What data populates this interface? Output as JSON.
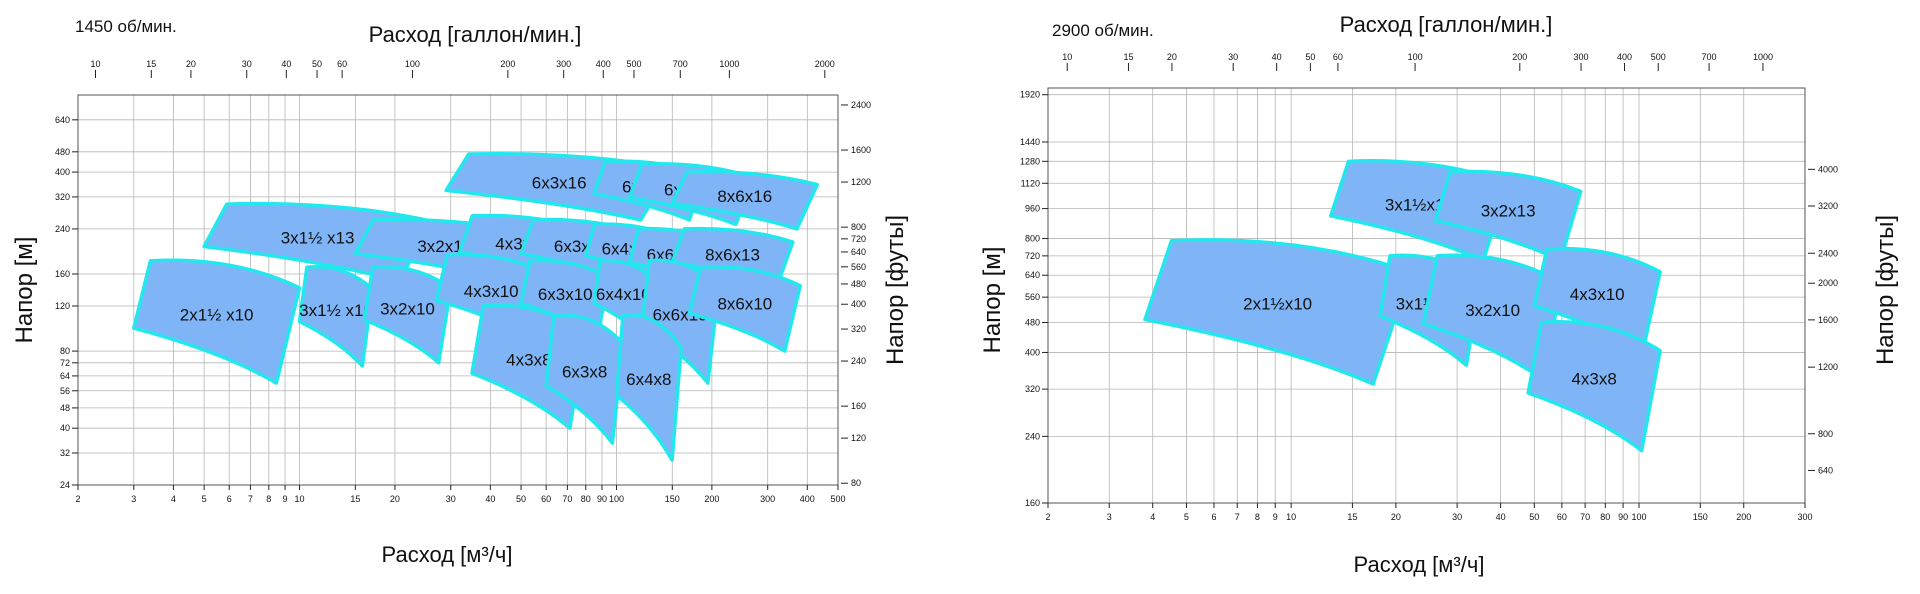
{
  "chart_data": [
    {
      "type": "area",
      "title": "1450 об/мин.",
      "xlabel": "Расход [м³/ч]",
      "x2label": "Расход [галлон/мин.]",
      "ylabel": "Напор [м]",
      "y2label": "Напор [футы]",
      "x_scale": "log",
      "y_scale": "log",
      "xlim": [
        2,
        500
      ],
      "ylim": [
        24,
        800
      ],
      "grid": true,
      "x_ticks": [
        "2",
        "3",
        "4",
        "5",
        "6",
        "7",
        "8",
        "9",
        "10",
        "15",
        "20",
        "30",
        "40",
        "50",
        "60",
        "70",
        "80",
        "90",
        "100",
        "150",
        "200",
        "300",
        "400",
        "500"
      ],
      "x2_ticks": [
        "10",
        "15",
        "20",
        "30",
        "40",
        "50",
        "60",
        "100",
        "200",
        "300",
        "400",
        "500",
        "700",
        "1000",
        "2000"
      ],
      "y_ticks": [
        "24",
        "32",
        "40",
        "48",
        "56",
        "64",
        "72",
        "80",
        "120",
        "160",
        "240",
        "320",
        "400",
        "480",
        "640"
      ],
      "y2_ticks": [
        "80",
        "120",
        "160",
        "240",
        "320",
        "400",
        "480",
        "560",
        "640",
        "720",
        "800",
        "1200",
        "1600",
        "2400"
      ],
      "regions": [
        {
          "label": "6x3x16",
          "x": [
            29,
            150
          ],
          "y": [
            260,
            470
          ]
        },
        {
          "label": "6x4x16",
          "x": [
            85,
            190
          ],
          "y": [
            260,
            440
          ]
        },
        {
          "label": "6x6x16",
          "x": [
            110,
            270
          ],
          "y": [
            250,
            430
          ]
        },
        {
          "label": "8x6x16",
          "x": [
            150,
            430
          ],
          "y": [
            240,
            400
          ]
        },
        {
          "label": "3x1½ x13",
          "x": [
            5,
            26
          ],
          "y": [
            150,
            300
          ]
        },
        {
          "label": "3x2x13",
          "x": [
            15,
            55
          ],
          "y": [
            150,
            260
          ]
        },
        {
          "label": "4x3x13",
          "x": [
            32,
            80
          ],
          "y": [
            150,
            270
          ]
        },
        {
          "label": "6x3x13",
          "x": [
            50,
            120
          ],
          "y": [
            150,
            260
          ]
        },
        {
          "label": "6x4x13",
          "x": [
            80,
            150
          ],
          "y": [
            150,
            250
          ]
        },
        {
          "label": "6x6x13",
          "x": [
            110,
            210
          ],
          "y": [
            140,
            240
          ]
        },
        {
          "label": "8x6x13",
          "x": [
            150,
            360
          ],
          "y": [
            140,
            240
          ]
        },
        {
          "label": "2x1½ x10",
          "x": [
            3,
            10
          ],
          "y": [
            60,
            180
          ]
        },
        {
          "label": "3x1½ x10",
          "x": [
            10,
            17
          ],
          "y": [
            70,
            170
          ]
        },
        {
          "label": "3x2x10",
          "x": [
            16,
            30
          ],
          "y": [
            72,
            170
          ]
        },
        {
          "label": "4x3x10",
          "x": [
            27,
            60
          ],
          "y": [
            90,
            190
          ]
        },
        {
          "label": "6x3x10",
          "x": [
            50,
            95
          ],
          "y": [
            90,
            180
          ]
        },
        {
          "label": "6x4x10",
          "x": [
            85,
            130
          ],
          "y": [
            90,
            180
          ]
        },
        {
          "label": "6x6x10",
          "x": [
            120,
            210
          ],
          "y": [
            60,
            180
          ]
        },
        {
          "label": "8x6x10",
          "x": [
            170,
            380
          ],
          "y": [
            80,
            170
          ]
        },
        {
          "label": "4x3x8",
          "x": [
            35,
            80
          ],
          "y": [
            40,
            120
          ]
        },
        {
          "label": "6x3x8",
          "x": [
            60,
            105
          ],
          "y": [
            35,
            110
          ]
        },
        {
          "label": "6x4x8",
          "x": [
            100,
            160
          ],
          "y": [
            30,
            110
          ]
        }
      ]
    },
    {
      "type": "area",
      "title": "2900 об/мин.",
      "xlabel": "Расход [м³/ч]",
      "x2label": "Расход [галлон/мин.]",
      "ylabel": "Напор [м]",
      "y2label": "Напор [футы]",
      "x_scale": "log",
      "y_scale": "log",
      "xlim": [
        2,
        300
      ],
      "ylim": [
        160,
        2000
      ],
      "grid": true,
      "x_ticks": [
        "2",
        "3",
        "4",
        "5",
        "6",
        "7",
        "8",
        "9",
        "10",
        "15",
        "20",
        "30",
        "40",
        "50",
        "60",
        "70",
        "80",
        "90",
        "100",
        "150",
        "200",
        "300"
      ],
      "x2_ticks": [
        "10",
        "15",
        "20",
        "30",
        "40",
        "50",
        "60",
        "100",
        "200",
        "300",
        "400",
        "500",
        "700",
        "1000"
      ],
      "y_ticks": [
        "160",
        "240",
        "320",
        "400",
        "480",
        "560",
        "640",
        "720",
        "800",
        "960",
        "1120",
        "1280",
        "1440",
        "1920"
      ],
      "y2_ticks": [
        "640",
        "800",
        "1200",
        "1600",
        "2000",
        "2400",
        "3200",
        "4000"
      ],
      "regions": [
        {
          "label": "3x1½x13",
          "x": [
            13,
            42
          ],
          "y": [
            700,
            1280
          ]
        },
        {
          "label": "3x2x13",
          "x": [
            26,
            68
          ],
          "y": [
            700,
            1200
          ]
        },
        {
          "label": "2x1½x10",
          "x": [
            3.8,
            22
          ],
          "y": [
            330,
            790
          ]
        },
        {
          "label": "3x1½x10",
          "x": [
            18,
            35
          ],
          "y": [
            370,
            720
          ]
        },
        {
          "label": "3x2x10",
          "x": [
            24,
            60
          ],
          "y": [
            340,
            720
          ]
        },
        {
          "label": "4x3x10",
          "x": [
            50,
            115
          ],
          "y": [
            400,
            750
          ]
        },
        {
          "label": "4x3x8",
          "x": [
            48,
            115
          ],
          "y": [
            220,
            480
          ]
        }
      ]
    }
  ]
}
